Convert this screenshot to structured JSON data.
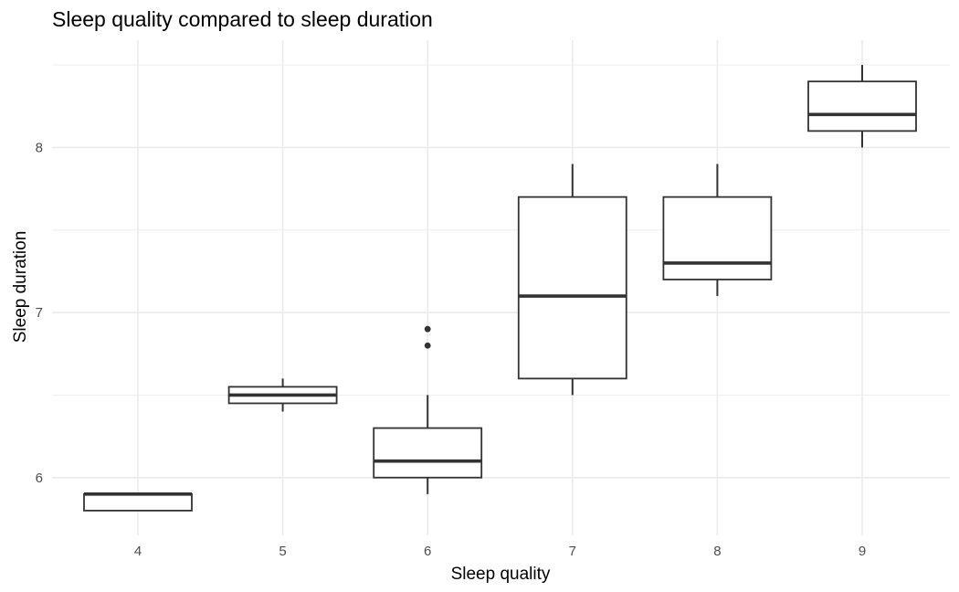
{
  "chart_data": {
    "type": "boxplot",
    "title": "Sleep quality compared to sleep duration",
    "xlabel": "Sleep quality",
    "ylabel": "Sleep duration",
    "categories": [
      "4",
      "5",
      "6",
      "7",
      "8",
      "9"
    ],
    "y_ticks": [
      "6",
      "7",
      "8"
    ],
    "ylim": [
      5.65,
      8.65
    ],
    "grid": true,
    "boxes": [
      {
        "category": "4",
        "whisker_low": 5.8,
        "q1": 5.8,
        "median": 5.9,
        "q3": 5.9,
        "whisker_high": 5.9,
        "outliers": []
      },
      {
        "category": "5",
        "whisker_low": 6.4,
        "q1": 6.45,
        "median": 6.5,
        "q3": 6.55,
        "whisker_high": 6.6,
        "outliers": []
      },
      {
        "category": "6",
        "whisker_low": 5.9,
        "q1": 6.0,
        "median": 6.1,
        "q3": 6.3,
        "whisker_high": 6.5,
        "outliers": [
          6.8,
          6.9
        ]
      },
      {
        "category": "7",
        "whisker_low": 6.5,
        "q1": 6.6,
        "median": 7.1,
        "q3": 7.7,
        "whisker_high": 7.9,
        "outliers": []
      },
      {
        "category": "8",
        "whisker_low": 7.1,
        "q1": 7.2,
        "median": 7.3,
        "q3": 7.7,
        "whisker_high": 7.9,
        "outliers": []
      },
      {
        "category": "9",
        "whisker_low": 8.0,
        "q1": 8.1,
        "median": 8.2,
        "q3": 8.4,
        "whisker_high": 8.5,
        "outliers": []
      }
    ]
  }
}
